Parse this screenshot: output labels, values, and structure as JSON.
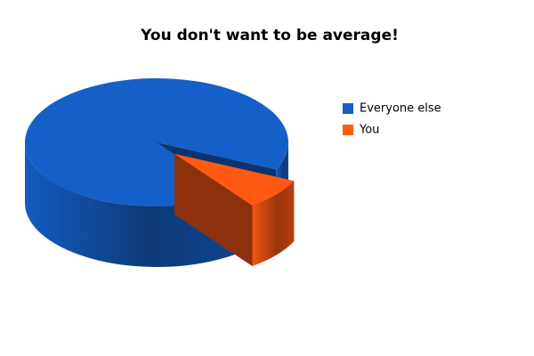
{
  "chart_data": {
    "type": "pie",
    "title": "You don't want to be average!",
    "categories": [
      "Everyone else",
      "You"
    ],
    "values": [
      92,
      8
    ],
    "colors": [
      "#1560c8",
      "#ff5a14"
    ],
    "legend": "right"
  }
}
